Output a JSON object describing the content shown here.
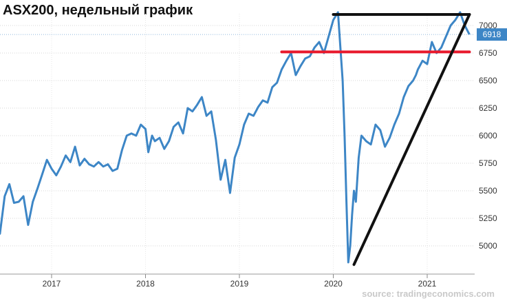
{
  "chart_data": {
    "type": "line",
    "title": "ASX200, недельный график",
    "source": "source: tradingeconomics.com",
    "ylim": [
      4800,
      7150
    ],
    "yticks": [
      5000,
      5250,
      5500,
      5750,
      6000,
      6250,
      6500,
      6750,
      7000
    ],
    "xticks": [
      2017,
      2018,
      2019,
      2020,
      2021
    ],
    "last_value": 6918,
    "series": [
      {
        "color": "#3d86c6",
        "x": [
          2016.4,
          2016.45,
          2016.5,
          2016.55,
          2016.6,
          2016.65,
          2016.7,
          2016.75,
          2016.8,
          2016.85,
          2016.9,
          2016.95,
          2017.0,
          2017.05,
          2017.1,
          2017.15,
          2017.2,
          2017.25,
          2017.3,
          2017.35,
          2017.4,
          2017.45,
          2017.5,
          2017.55,
          2017.6,
          2017.65,
          2017.7,
          2017.75,
          2017.8,
          2017.85,
          2017.9,
          2017.95,
          2018.0,
          2018.03,
          2018.07,
          2018.1,
          2018.15,
          2018.2,
          2018.25,
          2018.3,
          2018.35,
          2018.4,
          2018.45,
          2018.5,
          2018.55,
          2018.6,
          2018.65,
          2018.7,
          2018.75,
          2018.8,
          2018.85,
          2018.9,
          2018.95,
          2019.0,
          2019.05,
          2019.1,
          2019.15,
          2019.2,
          2019.25,
          2019.3,
          2019.35,
          2019.4,
          2019.45,
          2019.5,
          2019.55,
          2019.6,
          2019.65,
          2019.7,
          2019.75,
          2019.8,
          2019.85,
          2019.9,
          2019.95,
          2020.0,
          2020.05,
          2020.1,
          2020.12,
          2020.14,
          2020.16,
          2020.18,
          2020.2,
          2020.22,
          2020.24,
          2020.27,
          2020.3,
          2020.35,
          2020.4,
          2020.45,
          2020.5,
          2020.55,
          2020.6,
          2020.65,
          2020.7,
          2020.75,
          2020.8,
          2020.85,
          2020.88,
          2020.9,
          2020.95,
          2021.0,
          2021.05,
          2021.1,
          2021.15,
          2021.2,
          2021.25,
          2021.3,
          2021.35,
          2021.4,
          2021.45
        ],
        "values": [
          5250,
          5110,
          5450,
          5560,
          5390,
          5400,
          5450,
          5190,
          5400,
          5520,
          5650,
          5780,
          5700,
          5640,
          5720,
          5820,
          5760,
          5900,
          5730,
          5790,
          5740,
          5720,
          5760,
          5720,
          5740,
          5680,
          5700,
          5870,
          6000,
          6020,
          6000,
          6100,
          6060,
          5850,
          6000,
          5950,
          5980,
          5880,
          5950,
          6080,
          6120,
          6020,
          6250,
          6220,
          6280,
          6350,
          6180,
          6220,
          5960,
          5600,
          5780,
          5480,
          5800,
          5920,
          6100,
          6200,
          6180,
          6260,
          6320,
          6300,
          6440,
          6480,
          6600,
          6680,
          6750,
          6550,
          6630,
          6700,
          6720,
          6800,
          6850,
          6750,
          6900,
          7050,
          7120,
          6500,
          6000,
          5400,
          4850,
          5000,
          5280,
          5500,
          5400,
          5800,
          6000,
          5950,
          5920,
          6100,
          6050,
          5900,
          5980,
          6100,
          6200,
          6350,
          6450,
          6500,
          6550,
          6600,
          6680,
          6650,
          6850,
          6750,
          6800,
          6900,
          7000,
          7050,
          7120,
          7000,
          6918
        ]
      }
    ],
    "annotations": [
      {
        "type": "hline",
        "color": "#111111",
        "x": [
          2020.0,
          2021.45
        ],
        "y": 7100
      },
      {
        "type": "hline",
        "color": "#e8192c",
        "x": [
          2019.45,
          2021.45
        ],
        "y": 6760
      },
      {
        "type": "trendline",
        "color": "#111111",
        "x": [
          2020.22,
          2021.45
        ],
        "y": [
          4830,
          7100
        ]
      }
    ]
  }
}
